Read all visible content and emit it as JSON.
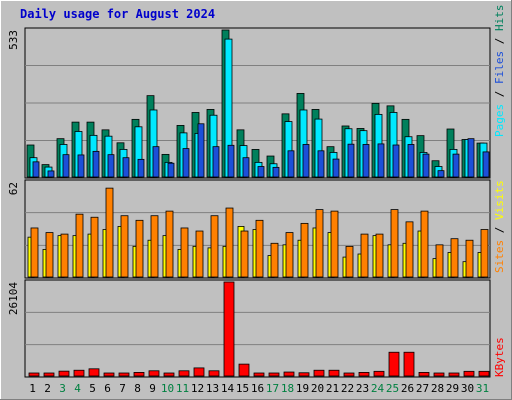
{
  "title": "Daily usage for August 2024",
  "colors": {
    "background": "#c0c0c0",
    "hits": "#00805c",
    "files": "#00e8ff",
    "pages": "#1c4fd9",
    "visits": "#ffff00",
    "sites": "#ff8000",
    "kbytes": "#ff0000",
    "weekend_label": "#008040",
    "weekday_label": "#000000"
  },
  "chart_data": [
    {
      "type": "bar",
      "panel": "hits_files_pages",
      "categories": [
        "1",
        "2",
        "3",
        "4",
        "5",
        "6",
        "7",
        "8",
        "9",
        "10",
        "11",
        "12",
        "13",
        "14",
        "15",
        "16",
        "17",
        "18",
        "19",
        "20",
        "21",
        "22",
        "23",
        "24",
        "25",
        "26",
        "27",
        "28",
        "29",
        "30",
        "31"
      ],
      "y_max_label": "533",
      "ylim": [
        0,
        533
      ],
      "series": [
        {
          "name": "Hits",
          "values": [
            116,
            45,
            139,
            199,
            199,
            171,
            124,
            209,
            295,
            82,
            187,
            234,
            245,
            533,
            171,
            100,
            76,
            229,
            303,
            245,
            110,
            185,
            176,
            267,
            258,
            209,
            150,
            59,
            174,
            136,
            123
          ]
        },
        {
          "name": "Files",
          "values": [
            70,
            36,
            118,
            165,
            151,
            148,
            100,
            182,
            243,
            53,
            160,
            158,
            224,
            500,
            114,
            53,
            48,
            201,
            243,
            210,
            89,
            175,
            168,
            227,
            234,
            146,
            89,
            38,
            100,
            136,
            123
          ]
        },
        {
          "name": "Pages",
          "values": [
            55,
            22,
            81,
            80,
            93,
            81,
            70,
            64,
            110,
            50,
            103,
            193,
            110,
            115,
            70,
            38,
            35,
            95,
            118,
            95,
            65,
            119,
            118,
            120,
            116,
            118,
            83,
            23,
            83,
            139,
            91
          ]
        }
      ],
      "legend": [
        "Pages",
        "Files",
        "Hits"
      ]
    },
    {
      "type": "bar",
      "panel": "visits_sites",
      "categories": [
        "1",
        "2",
        "3",
        "4",
        "5",
        "6",
        "7",
        "8",
        "9",
        "10",
        "11",
        "12",
        "13",
        "14",
        "15",
        "16",
        "17",
        "18",
        "19",
        "20",
        "21",
        "22",
        "23",
        "24",
        "25",
        "26",
        "27",
        "28",
        "29",
        "30",
        "31"
      ],
      "y_max_label": "62",
      "ylim": [
        0,
        62
      ],
      "series": [
        {
          "name": "Visits",
          "values": [
            26,
            18,
            27,
            27,
            28,
            31,
            33,
            20,
            24,
            27,
            18,
            20,
            19,
            20,
            33,
            31,
            14,
            21,
            24,
            32,
            29,
            13,
            15,
            27,
            21,
            22,
            30,
            12,
            16,
            10,
            16
          ]
        },
        {
          "name": "Sites",
          "values": [
            32,
            29,
            28,
            41,
            39,
            58,
            40,
            37,
            40,
            43,
            32,
            30,
            40,
            45,
            30,
            37,
            22,
            29,
            35,
            44,
            43,
            20,
            28,
            28,
            44,
            36,
            43,
            21,
            25,
            24,
            31
          ]
        }
      ],
      "legend": [
        "Sites",
        "Visits"
      ]
    },
    {
      "type": "bar",
      "panel": "kbytes",
      "categories": [
        "1",
        "2",
        "3",
        "4",
        "5",
        "6",
        "7",
        "8",
        "9",
        "10",
        "11",
        "12",
        "13",
        "14",
        "15",
        "16",
        "17",
        "18",
        "19",
        "20",
        "21",
        "22",
        "23",
        "24",
        "25",
        "26",
        "27",
        "28",
        "29",
        "30",
        "31"
      ],
      "y_max_label": "26104",
      "ylim": [
        0,
        26104
      ],
      "series": [
        {
          "name": "KBytes",
          "values": [
            400,
            750,
            1350,
            1600,
            2000,
            800,
            550,
            1000,
            1450,
            480,
            1450,
            2250,
            1450,
            26104,
            3300,
            500,
            380,
            1100,
            900,
            1600,
            1600,
            800,
            1000,
            1300,
            6600,
            6600,
            1000,
            400,
            450,
            1300,
            1300
          ]
        }
      ],
      "legend": [
        "KBytes"
      ]
    }
  ],
  "weekend_days": [
    3,
    4,
    10,
    11,
    17,
    18,
    24,
    25,
    31
  ]
}
